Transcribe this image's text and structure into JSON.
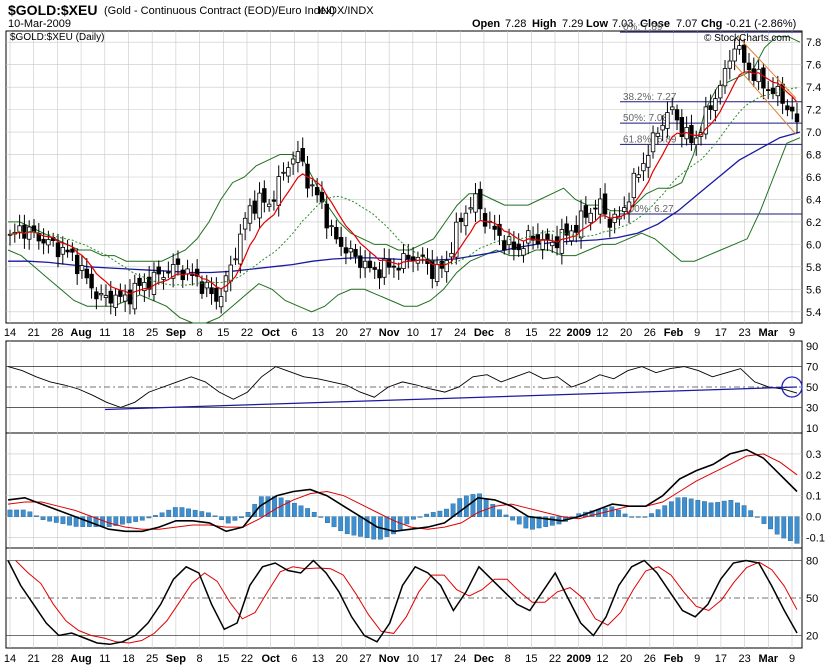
{
  "header": {
    "symbol": "$GOLD:$XEU",
    "description": "(Gold - Continuous Contract (EOD)/Euro Index)",
    "exchange": "INDX/INDX",
    "date": "10-Mar-2009",
    "series_label": "$GOLD:$XEU (Daily)",
    "watermark": "© StockCharts.com",
    "ohlc": {
      "open_label": "Open",
      "open": "7.28",
      "high_label": "High",
      "high": "7.29",
      "low_label": "Low",
      "low": "7.03",
      "close_label": "Close",
      "close": "7.07",
      "chg_label": "Chg",
      "chg": "-0.21 (-2.86%)"
    }
  },
  "colors": {
    "grid": "#c8c8c8",
    "bollinger": "#1f6f1f",
    "ema_fast": "#e00000",
    "ma_long": "#1a1aa0",
    "ma_mid": "#2a8a2a",
    "candle": "#000000",
    "macd_hist": "#3d8fd0",
    "fib": "#1a1a80",
    "channel": "#e08030",
    "circle": "#2020c0"
  },
  "chart_data": [
    {
      "type": "candlestick",
      "name": "price",
      "ylim": [
        5.3,
        7.9
      ],
      "y_ticks": [
        "5.4",
        "5.6",
        "5.8",
        "6.0",
        "6.2",
        "6.4",
        "6.6",
        "6.8",
        "7.0",
        "7.2",
        "7.4",
        "7.6",
        "7.8"
      ],
      "x_tick_labels": [
        {
          "label": "14",
          "bold": false
        },
        {
          "label": "21",
          "bold": false
        },
        {
          "label": "28",
          "bold": false
        },
        {
          "label": "Aug",
          "bold": true
        },
        {
          "label": "11",
          "bold": false
        },
        {
          "label": "18",
          "bold": false
        },
        {
          "label": "25",
          "bold": false
        },
        {
          "label": "Sep",
          "bold": true
        },
        {
          "label": "8",
          "bold": false
        },
        {
          "label": "15",
          "bold": false
        },
        {
          "label": "22",
          "bold": false
        },
        {
          "label": "Oct",
          "bold": true
        },
        {
          "label": "6",
          "bold": false
        },
        {
          "label": "13",
          "bold": false
        },
        {
          "label": "20",
          "bold": false
        },
        {
          "label": "27",
          "bold": false
        },
        {
          "label": "Nov",
          "bold": true
        },
        {
          "label": "10",
          "bold": false
        },
        {
          "label": "17",
          "bold": false
        },
        {
          "label": "24",
          "bold": false
        },
        {
          "label": "Dec",
          "bold": true
        },
        {
          "label": "8",
          "bold": false
        },
        {
          "label": "15",
          "bold": false
        },
        {
          "label": "22",
          "bold": false
        },
        {
          "label": "2009",
          "bold": true
        },
        {
          "label": "12",
          "bold": false
        },
        {
          "label": "20",
          "bold": false
        },
        {
          "label": "26",
          "bold": false
        },
        {
          "label": "Feb",
          "bold": true
        },
        {
          "label": "9",
          "bold": false
        },
        {
          "label": "17",
          "bold": false
        },
        {
          "label": "23",
          "bold": false
        },
        {
          "label": "Mar",
          "bold": true
        },
        {
          "label": "9",
          "bold": false
        }
      ],
      "close_path": [
        6.05,
        6.15,
        6.1,
        6.05,
        6.0,
        5.95,
        5.9,
        5.75,
        5.6,
        5.5,
        5.55,
        5.5,
        5.6,
        5.65,
        5.7,
        5.75,
        5.8,
        5.75,
        5.7,
        5.6,
        5.5,
        5.7,
        6.0,
        6.3,
        6.4,
        6.35,
        6.55,
        6.75,
        6.8,
        6.5,
        6.4,
        6.1,
        6.0,
        5.9,
        5.85,
        5.75,
        5.8,
        5.8,
        5.85,
        5.9,
        5.85,
        5.75,
        5.8,
        6.1,
        6.3,
        6.4,
        6.2,
        6.1,
        6.0,
        5.95,
        6.05,
        6.05,
        6.0,
        6.05,
        6.1,
        6.2,
        6.3,
        6.35,
        6.2,
        6.25,
        6.5,
        6.7,
        6.9,
        7.1,
        7.2,
        7.0,
        6.9,
        7.1,
        7.3,
        7.5,
        7.8,
        7.6,
        7.5,
        7.4,
        7.35,
        7.25,
        7.07
      ],
      "bollinger_upper": [
        6.2,
        6.2,
        6.15,
        6.1,
        6.05,
        6.0,
        5.95,
        5.95,
        5.9,
        5.9,
        5.85,
        5.85,
        5.85,
        5.85,
        5.9,
        5.95,
        6.05,
        6.2,
        6.4,
        6.55,
        6.6,
        6.7,
        6.75,
        6.8,
        6.8,
        6.75,
        6.55,
        6.35,
        6.2,
        6.1,
        6.05,
        6.0,
        6.0,
        5.95,
        5.95,
        6.0,
        6.05,
        6.2,
        6.35,
        6.45,
        6.45,
        6.4,
        6.35,
        6.35,
        6.35,
        6.4,
        6.45,
        6.5,
        6.4,
        6.35,
        6.35,
        6.3,
        6.3,
        6.35,
        6.45,
        6.5,
        6.5,
        6.55,
        6.8,
        7.2,
        7.4,
        7.45,
        7.5,
        7.55,
        7.75,
        7.85,
        7.85,
        7.8
      ],
      "bollinger_lower": [
        5.95,
        5.9,
        5.8,
        5.7,
        5.6,
        5.5,
        5.45,
        5.45,
        5.45,
        5.5,
        5.55,
        5.5,
        5.45,
        5.35,
        5.3,
        5.3,
        5.35,
        5.45,
        5.55,
        5.65,
        5.6,
        5.5,
        5.45,
        5.4,
        5.45,
        5.55,
        5.6,
        5.6,
        5.55,
        5.5,
        5.45,
        5.45,
        5.5,
        5.6,
        5.75,
        5.85,
        5.9,
        5.95,
        5.9,
        5.9,
        5.95,
        5.95,
        5.9,
        5.9,
        5.95,
        6.0,
        6.0,
        6.05,
        6.1,
        6.05,
        5.95,
        5.85,
        5.85,
        5.9,
        5.95,
        6.0,
        6.05,
        6.3,
        6.6,
        6.9,
        6.95
      ],
      "ma_long": [
        5.85,
        5.85,
        5.84,
        5.82,
        5.8,
        5.79,
        5.78,
        5.77,
        5.76,
        5.75,
        5.75,
        5.76,
        5.78,
        5.8,
        5.82,
        5.85,
        5.87,
        5.88,
        5.88,
        5.87,
        5.86,
        5.86,
        5.87,
        5.9,
        5.93,
        5.97,
        6.0,
        6.02,
        6.03,
        6.04,
        6.06,
        6.1,
        6.18,
        6.3,
        6.45,
        6.6,
        6.75,
        6.85,
        6.95,
        7.0
      ],
      "fib_levels": [
        {
          "label": "0%: 7.89",
          "value": 7.89
        },
        {
          "label": "38.2%: 7.27",
          "value": 7.27
        },
        {
          "label": "50%: 7.08",
          "value": 7.08
        },
        {
          "label": "61.8%: 6.89",
          "value": 6.89
        },
        {
          "label": "100%: 6.27",
          "value": 6.27
        }
      ]
    },
    {
      "type": "line",
      "name": "rsi",
      "ylim": [
        5,
        95
      ],
      "y_ticks": [
        "90",
        "70",
        "50",
        "30",
        "10"
      ],
      "reference_lines": [
        70,
        50,
        30
      ],
      "values": [
        70,
        66,
        60,
        55,
        52,
        48,
        42,
        35,
        30,
        35,
        45,
        50,
        55,
        60,
        55,
        45,
        38,
        45,
        60,
        70,
        65,
        60,
        58,
        55,
        52,
        45,
        40,
        50,
        55,
        52,
        48,
        45,
        50,
        60,
        62,
        55,
        60,
        65,
        58,
        60,
        50,
        55,
        62,
        58,
        66,
        70,
        64,
        68,
        70,
        66,
        60,
        64,
        68,
        55,
        50,
        48,
        44
      ]
    },
    {
      "type": "line",
      "name": "macd",
      "ylim": [
        -0.15,
        0.4
      ],
      "y_ticks": [
        "0.3",
        "0.2",
        "0.1",
        "0.0",
        "-0.1"
      ],
      "macd": [
        0.08,
        0.09,
        0.06,
        0.03,
        0.0,
        -0.03,
        -0.06,
        -0.07,
        -0.07,
        -0.05,
        -0.02,
        -0.02,
        -0.03,
        -0.07,
        -0.05,
        0.05,
        0.1,
        0.12,
        0.13,
        0.1,
        0.05,
        0.0,
        -0.05,
        -0.07,
        -0.06,
        -0.05,
        -0.03,
        0.03,
        0.09,
        0.08,
        0.05,
        0.0,
        -0.01,
        -0.02,
        0.0,
        0.03,
        0.06,
        0.05,
        0.05,
        0.1,
        0.18,
        0.22,
        0.25,
        0.3,
        0.32,
        0.28,
        0.2,
        0.12
      ],
      "signal": [
        0.06,
        0.07,
        0.07,
        0.05,
        0.03,
        0.0,
        -0.03,
        -0.05,
        -0.06,
        -0.06,
        -0.05,
        -0.04,
        -0.04,
        -0.05,
        -0.05,
        -0.01,
        0.04,
        0.08,
        0.11,
        0.12,
        0.1,
        0.06,
        0.02,
        -0.02,
        -0.05,
        -0.06,
        -0.05,
        -0.03,
        0.02,
        0.05,
        0.06,
        0.04,
        0.02,
        0.0,
        -0.01,
        0.01,
        0.03,
        0.05,
        0.05,
        0.07,
        0.12,
        0.17,
        0.21,
        0.25,
        0.29,
        0.3,
        0.26,
        0.2
      ]
    },
    {
      "type": "line",
      "name": "stochastic",
      "ylim": [
        10,
        90
      ],
      "y_ticks": [
        "80",
        "50",
        "20"
      ],
      "reference_lines": [
        80,
        50,
        20
      ],
      "k": [
        80,
        60,
        45,
        30,
        20,
        22,
        18,
        14,
        13,
        15,
        20,
        30,
        45,
        65,
        75,
        70,
        45,
        25,
        30,
        60,
        75,
        78,
        72,
        70,
        80,
        70,
        55,
        35,
        20,
        15,
        30,
        60,
        75,
        70,
        60,
        40,
        55,
        75,
        65,
        55,
        45,
        40,
        55,
        70,
        50,
        30,
        20,
        35,
        60,
        75,
        80,
        70,
        55,
        40,
        35,
        45,
        65,
        78,
        80,
        78,
        60,
        40,
        22
      ]
    }
  ]
}
